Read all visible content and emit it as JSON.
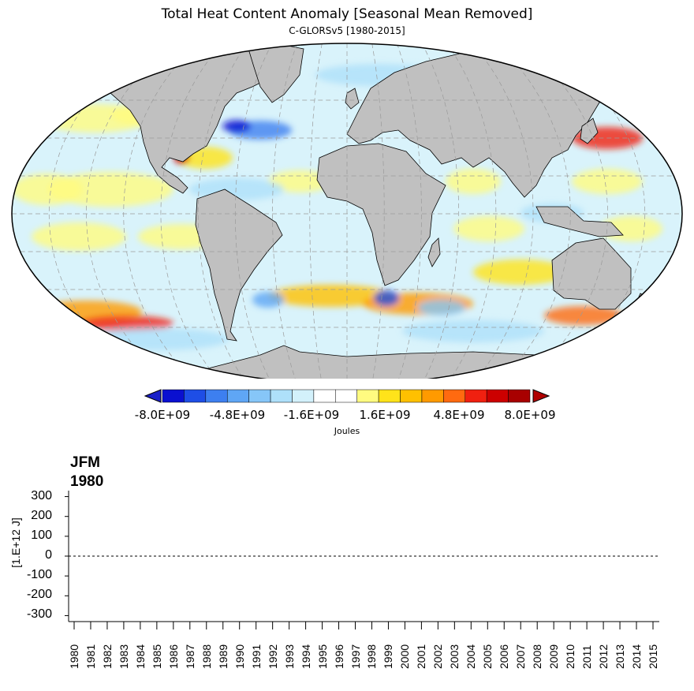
{
  "title": "Total Heat Content Anomaly [Seasonal Mean Removed]",
  "subtitle": "C-GLORSv5 [1980-2015]",
  "colorbar": {
    "units": "Joules",
    "labels": [
      "-8.0E+09",
      "-4.8E+09",
      "-1.6E+09",
      "1.6E+09",
      "4.8E+09",
      "8.0E+09"
    ],
    "colors": [
      "#0a10d0",
      "#1e4ee6",
      "#3d7ff0",
      "#5fa6f5",
      "#86c6f8",
      "#aee0fa",
      "#d3f1fb",
      "#ffffff",
      "#ffffff",
      "#fffb80",
      "#ffe31a",
      "#ffc000",
      "#ff9a00",
      "#ff6a10",
      "#f02010",
      "#cc0000",
      "#a80000"
    ],
    "under_color": "#1a20c8",
    "over_color": "#b00000"
  },
  "map": {
    "projection": "Robinson",
    "land_color": "#c0c0c0",
    "ocean_base": "#d9f3fb"
  },
  "timeseries": {
    "season": "JFM",
    "year": "1980",
    "ylabel": "[1.E+12 J]",
    "yticks": [
      "300",
      "200",
      "100",
      "0",
      "-100",
      "-200",
      "-300"
    ],
    "ylim": [
      -330,
      330
    ],
    "xticks": [
      "1980",
      "1981",
      "1982",
      "1983",
      "1984",
      "1985",
      "1986",
      "1987",
      "1988",
      "1989",
      "1990",
      "1991",
      "1992",
      "1993",
      "1994",
      "1995",
      "1996",
      "1997",
      "1998",
      "1999",
      "2000",
      "2001",
      "2002",
      "2003",
      "2004",
      "2005",
      "2006",
      "2007",
      "2008",
      "2009",
      "2010",
      "2011",
      "2012",
      "2013",
      "2014",
      "2015"
    ],
    "zero_line": "dashed"
  }
}
